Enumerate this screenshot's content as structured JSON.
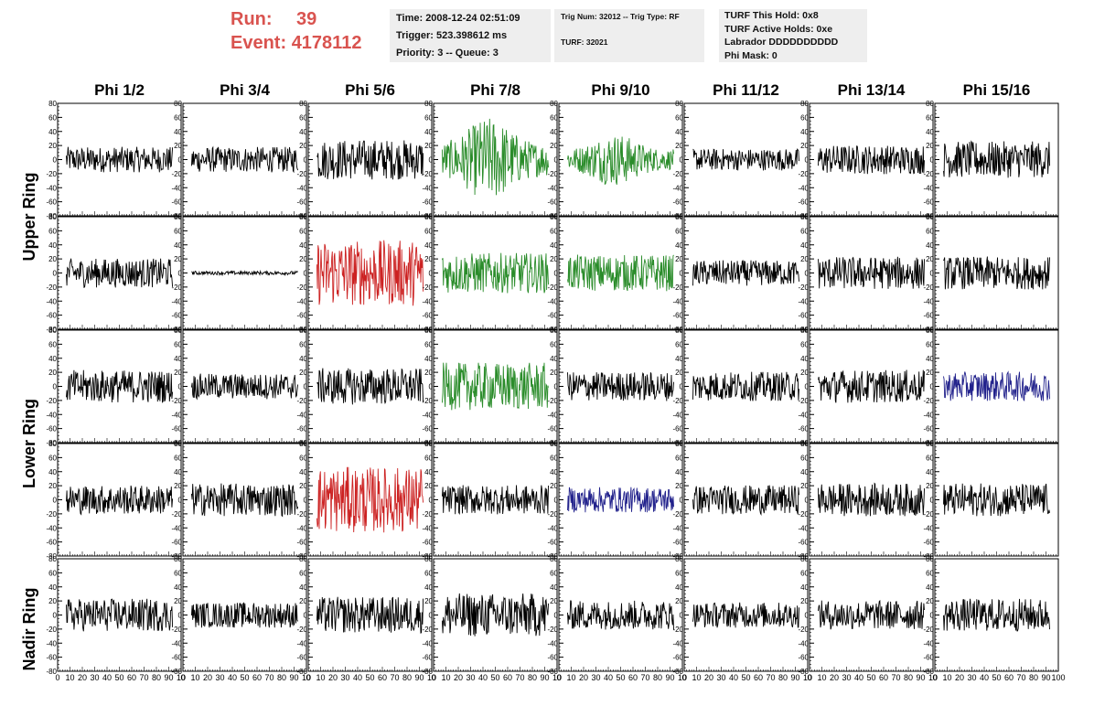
{
  "header": {
    "run_label": "Run:",
    "run_value": "39",
    "event_label": "Event:",
    "event_value": "4178112",
    "time_line": "Time: 2008-12-24 02:51:09",
    "trigger_line": "Trigger: 523.398612 ms",
    "priority_line": "Priority: 3 -- Queue: 3",
    "trig_num_line": "Trig Num: 32012 -- Trig Type: RF",
    "turf_line": "TURF: 32021",
    "turf_this_hold": "TURF This Hold: 0x8",
    "turf_active_holds": "TURF Active Holds: 0xe",
    "labrador": "Labrador DDDDDDDDDD",
    "phi_mask": "Phi Mask: 0"
  },
  "chart_data": {
    "type": "line",
    "columns": [
      "Phi 1/2",
      "Phi 3/4",
      "Phi 5/6",
      "Phi 7/8",
      "Phi 9/10",
      "Phi 11/12",
      "Phi 13/14",
      "Phi 15/16"
    ],
    "ring_labels": [
      "Upper Ring",
      "Lower Ring",
      "Nadir Ring"
    ],
    "xlim": [
      0,
      100
    ],
    "ylim": [
      -80,
      80
    ],
    "yticks": [
      "80",
      "60",
      "40",
      "20",
      "0",
      "-20",
      "-40",
      "-60",
      "-80"
    ],
    "xticks": [
      "0",
      "10",
      "20",
      "30",
      "40",
      "50",
      "60",
      "70",
      "80",
      "90",
      "10"
    ],
    "last_xtick": "100",
    "colors": {
      "normal": "#000000",
      "green": "#2a8c2a",
      "red": "#cc2222",
      "blue": "#22228c"
    },
    "traces": [
      [
        {
          "color": "normal",
          "amp": 14
        },
        {
          "color": "normal",
          "amp": 14
        },
        {
          "color": "normal",
          "amp": 22
        },
        {
          "color": "green",
          "amp": 32
        },
        {
          "color": "green",
          "amp": 20
        },
        {
          "color": "normal",
          "amp": 12
        },
        {
          "color": "normal",
          "amp": 16
        },
        {
          "color": "normal",
          "amp": 20
        }
      ],
      [
        {
          "color": "normal",
          "amp": 16
        },
        {
          "color": "normal",
          "amp": 2
        },
        {
          "color": "red",
          "amp": 36
        },
        {
          "color": "green",
          "amp": 22
        },
        {
          "color": "green",
          "amp": 20
        },
        {
          "color": "normal",
          "amp": 14
        },
        {
          "color": "normal",
          "amp": 18
        },
        {
          "color": "normal",
          "amp": 18
        }
      ],
      [
        {
          "color": "normal",
          "amp": 18
        },
        {
          "color": "normal",
          "amp": 14
        },
        {
          "color": "normal",
          "amp": 20
        },
        {
          "color": "green",
          "amp": 26
        },
        {
          "color": "normal",
          "amp": 16
        },
        {
          "color": "normal",
          "amp": 16
        },
        {
          "color": "normal",
          "amp": 18
        },
        {
          "color": "blue",
          "amp": 16
        }
      ],
      [
        {
          "color": "normal",
          "amp": 16
        },
        {
          "color": "normal",
          "amp": 18
        },
        {
          "color": "red",
          "amp": 36
        },
        {
          "color": "normal",
          "amp": 16
        },
        {
          "color": "blue",
          "amp": 14
        },
        {
          "color": "normal",
          "amp": 16
        },
        {
          "color": "normal",
          "amp": 18
        },
        {
          "color": "normal",
          "amp": 18
        }
      ],
      [
        {
          "color": "normal",
          "amp": 18
        },
        {
          "color": "normal",
          "amp": 14
        },
        {
          "color": "normal",
          "amp": 20
        },
        {
          "color": "normal",
          "amp": 24
        },
        {
          "color": "normal",
          "amp": 16
        },
        {
          "color": "normal",
          "amp": 14
        },
        {
          "color": "normal",
          "amp": 16
        },
        {
          "color": "normal",
          "amp": 18
        }
      ]
    ]
  }
}
